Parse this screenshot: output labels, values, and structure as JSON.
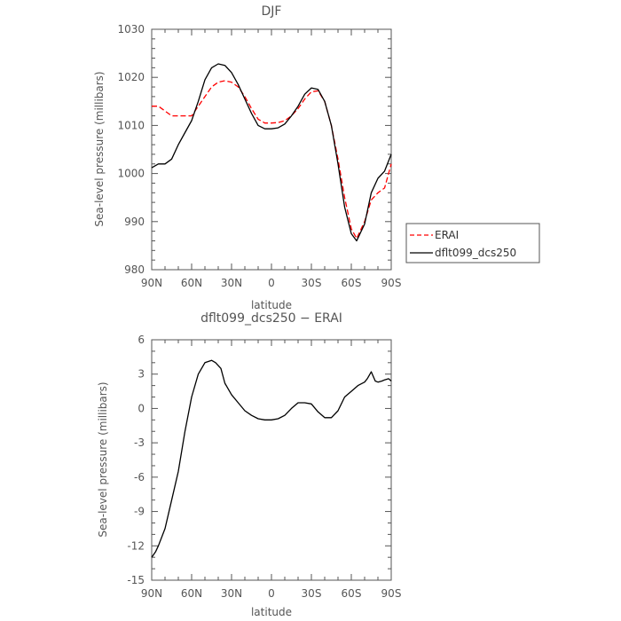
{
  "chart_data": [
    {
      "type": "line",
      "title": "DJF",
      "xlabel": "latitude",
      "ylabel": "Sea-level pressure (millibars)",
      "xlim": [
        90,
        -90
      ],
      "ylim": [
        980,
        1030
      ],
      "xticks": [
        90,
        60,
        30,
        0,
        -30,
        -60,
        -90
      ],
      "xtick_labels": [
        "90N",
        "60N",
        "30N",
        "0",
        "30S",
        "60S",
        "90S"
      ],
      "yticks": [
        980,
        990,
        1000,
        1010,
        1020,
        1030
      ],
      "grid": false,
      "legend_position": "outside-right",
      "series": [
        {
          "name": "ERAI",
          "color": "#ff0000",
          "dash": "dashed",
          "x": [
            90,
            85,
            80,
            75,
            70,
            65,
            60,
            55,
            50,
            45,
            40,
            35,
            30,
            25,
            20,
            15,
            10,
            5,
            0,
            -5,
            -10,
            -15,
            -20,
            -25,
            -30,
            -35,
            -40,
            -45,
            -50,
            -55,
            -60,
            -64,
            -70,
            -75,
            -80,
            -85,
            -90
          ],
          "y": [
            1014,
            1014,
            1013,
            1012,
            1012,
            1012,
            1012,
            1014,
            1016,
            1018,
            1019,
            1019.3,
            1019,
            1018,
            1016,
            1013.5,
            1011.3,
            1010.5,
            1010.5,
            1010.6,
            1011,
            1012,
            1013.5,
            1015.5,
            1017,
            1017.2,
            1015,
            1010,
            1003,
            995,
            988.5,
            986.5,
            990,
            994.5,
            996,
            997,
            1002
          ]
        },
        {
          "name": "dflt099_dcs250",
          "color": "#000000",
          "dash": "solid",
          "x": [
            90,
            85,
            80,
            75,
            70,
            65,
            60,
            55,
            50,
            45,
            40,
            35,
            30,
            25,
            20,
            15,
            10,
            5,
            0,
            -5,
            -10,
            -15,
            -20,
            -25,
            -30,
            -35,
            -40,
            -45,
            -50,
            -55,
            -60,
            -64,
            -70,
            -75,
            -80,
            -85,
            -90
          ],
          "y": [
            1001.2,
            1002,
            1002,
            1003,
            1006,
            1008.5,
            1011,
            1015,
            1019.5,
            1022,
            1022.8,
            1022.5,
            1021,
            1018.5,
            1015.5,
            1012.5,
            1010,
            1009.3,
            1009.3,
            1009.5,
            1010.3,
            1012,
            1014,
            1016.5,
            1017.8,
            1017.5,
            1015,
            1010,
            1002,
            993,
            987.5,
            986,
            989.5,
            996,
            999,
            1000.5,
            1004
          ]
        }
      ]
    },
    {
      "type": "line",
      "title": "dflt099_dcs250 − ERAI",
      "xlabel": "latitude",
      "ylabel": "Sea-level pressure (millibars)",
      "xlim": [
        90,
        -90
      ],
      "ylim": [
        -15,
        6
      ],
      "xticks": [
        90,
        60,
        30,
        0,
        -30,
        -60,
        -90
      ],
      "xtick_labels": [
        "90N",
        "60N",
        "30N",
        "0",
        "30S",
        "60S",
        "90S"
      ],
      "yticks": [
        -15,
        -12,
        -9,
        -6,
        -3,
        0,
        3,
        6
      ],
      "grid": false,
      "series": [
        {
          "color": "#000000",
          "dash": "solid",
          "x": [
            90,
            87,
            85,
            80,
            75,
            70,
            65,
            60,
            55,
            50,
            45,
            42,
            38,
            35,
            30,
            25,
            20,
            15,
            10,
            5,
            0,
            -5,
            -10,
            -15,
            -20,
            -25,
            -30,
            -35,
            -40,
            -45,
            -50,
            -55,
            -60,
            -65,
            -70,
            -72,
            -75,
            -78,
            -80,
            -83,
            -85,
            -88,
            -90
          ],
          "y": [
            -13,
            -12.5,
            -12,
            -10.5,
            -8,
            -5.5,
            -2,
            1,
            3,
            4,
            4.2,
            4,
            3.5,
            2.2,
            1.2,
            0.5,
            -0.2,
            -0.6,
            -0.9,
            -1,
            -1,
            -0.9,
            -0.6,
            0,
            0.5,
            0.5,
            0.4,
            -0.3,
            -0.8,
            -0.8,
            -0.2,
            1,
            1.5,
            2,
            2.3,
            2.6,
            3.2,
            2.4,
            2.3,
            2.4,
            2.5,
            2.6,
            2.4
          ]
        }
      ]
    }
  ]
}
